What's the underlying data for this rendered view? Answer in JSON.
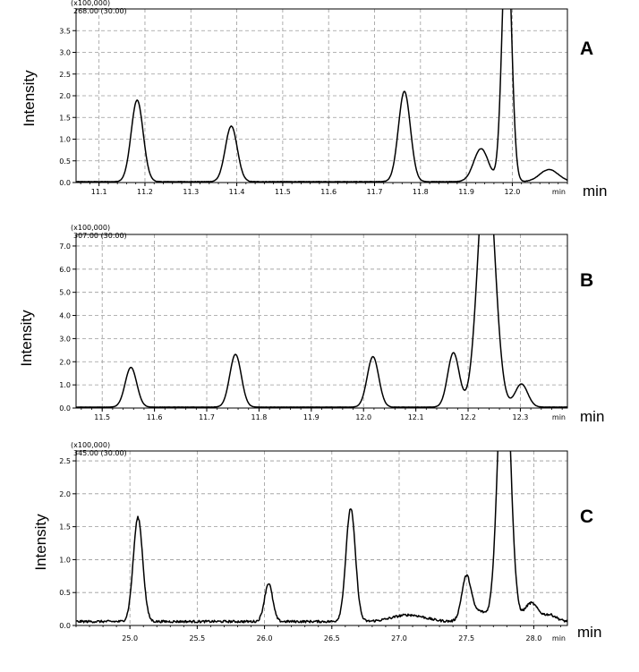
{
  "chart_data": [
    {
      "type": "line",
      "panel_label": "A",
      "multiplier_label": "(x100,000)",
      "ion_label": "268.00 (30.00)",
      "ylabel": "Intensity",
      "xlabel": "min",
      "xunit_label": "min",
      "xlim": [
        11.05,
        12.12
      ],
      "ylim": [
        0,
        4.0
      ],
      "xticks": [
        11.1,
        11.2,
        11.3,
        11.4,
        11.5,
        11.6,
        11.7,
        11.8,
        11.9,
        12.0
      ],
      "xtick_labels": [
        "11.1",
        "11.2",
        "11.3",
        "11.4",
        "11.5",
        "11.6",
        "11.7",
        "11.8",
        "11.9",
        "12.0"
      ],
      "yticks": [
        0,
        0.5,
        1.0,
        1.5,
        2.0,
        2.5,
        3.0,
        3.5
      ],
      "ytick_labels": [
        "0.0",
        "0.5",
        "1.0",
        "1.5",
        "2.0",
        "2.5",
        "3.0",
        "3.5"
      ],
      "baseline": 0.02,
      "peaks": [
        {
          "rt": 11.183,
          "height": 1.88,
          "width": 0.013
        },
        {
          "rt": 11.388,
          "height": 1.28,
          "width": 0.013
        },
        {
          "rt": 11.765,
          "height": 2.08,
          "width": 0.013
        },
        {
          "rt": 11.932,
          "height": 0.76,
          "width": 0.016
        },
        {
          "rt": 11.988,
          "height": 6.0,
          "width": 0.01
        },
        {
          "rt": 12.08,
          "height": 0.28,
          "width": 0.02
        }
      ],
      "points": [
        [
          11.05,
          0.02
        ],
        [
          11.15,
          0.03
        ],
        [
          11.183,
          1.88
        ],
        [
          11.21,
          0.05
        ],
        [
          11.35,
          0.03
        ],
        [
          11.388,
          1.28
        ],
        [
          11.43,
          0.05
        ],
        [
          11.7,
          0.03
        ],
        [
          11.765,
          2.08
        ],
        [
          11.8,
          0.06
        ],
        [
          11.9,
          0.2
        ],
        [
          11.932,
          0.8
        ],
        [
          11.95,
          0.6
        ],
        [
          11.988,
          4.0
        ],
        [
          12.03,
          0.2
        ],
        [
          12.08,
          0.3
        ],
        [
          12.12,
          0.02
        ]
      ]
    },
    {
      "type": "line",
      "panel_label": "B",
      "multiplier_label": "(x100,000)",
      "ion_label": "307.00 (30.00)",
      "ylabel": "Intensity",
      "xlabel": "min",
      "xunit_label": "min",
      "xlim": [
        11.45,
        12.39
      ],
      "ylim": [
        0,
        7.5
      ],
      "xticks": [
        11.5,
        11.6,
        11.7,
        11.8,
        11.9,
        12.0,
        12.1,
        12.2,
        12.3
      ],
      "xtick_labels": [
        "11.5",
        "11.6",
        "11.7",
        "11.8",
        "11.9",
        "12.0",
        "12.1",
        "12.2",
        "12.3"
      ],
      "yticks": [
        0,
        1.0,
        2.0,
        3.0,
        4.0,
        5.0,
        6.0,
        7.0
      ],
      "ytick_labels": [
        "0.0",
        "1.0",
        "2.0",
        "3.0",
        "4.0",
        "5.0",
        "6.0",
        "7.0"
      ],
      "baseline": 0.04,
      "peaks": [
        {
          "rt": 11.555,
          "height": 1.72,
          "width": 0.011
        },
        {
          "rt": 11.755,
          "height": 2.28,
          "width": 0.011
        },
        {
          "rt": 12.018,
          "height": 2.18,
          "width": 0.011
        },
        {
          "rt": 12.172,
          "height": 2.35,
          "width": 0.011
        },
        {
          "rt": 12.235,
          "height": 11.0,
          "width": 0.016
        },
        {
          "rt": 12.302,
          "height": 1.0,
          "width": 0.012
        }
      ],
      "points": [
        [
          11.45,
          0.04
        ],
        [
          11.53,
          0.05
        ],
        [
          11.555,
          1.72
        ],
        [
          11.58,
          0.05
        ],
        [
          11.72,
          0.05
        ],
        [
          11.755,
          2.28
        ],
        [
          11.79,
          0.05
        ],
        [
          11.99,
          0.05
        ],
        [
          12.018,
          2.18
        ],
        [
          12.05,
          0.05
        ],
        [
          12.15,
          0.3
        ],
        [
          12.172,
          2.35
        ],
        [
          12.19,
          1.2
        ],
        [
          12.235,
          7.5
        ],
        [
          12.27,
          0.6
        ],
        [
          12.302,
          1.1
        ],
        [
          12.39,
          0.04
        ]
      ]
    },
    {
      "type": "line",
      "panel_label": "C",
      "multiplier_label": "(x100,000)",
      "ion_label": "345.00 (30.00)",
      "ylabel": "Intensity",
      "xlabel": "min",
      "xunit_label": "min",
      "xlim": [
        24.6,
        28.25
      ],
      "ylim": [
        0,
        2.65
      ],
      "xticks": [
        25.0,
        25.5,
        26.0,
        26.5,
        27.0,
        27.5,
        28.0
      ],
      "xtick_labels": [
        "25.0",
        "25.5",
        "26.0",
        "26.5",
        "27.0",
        "27.5",
        "28.0"
      ],
      "yticks": [
        0,
        0.5,
        1.0,
        1.5,
        2.0,
        2.5
      ],
      "ytick_labels": [
        "0.0",
        "0.5",
        "1.0",
        "1.5",
        "2.0",
        "2.5"
      ],
      "baseline": 0.06,
      "peaks": [
        {
          "rt": 25.06,
          "height": 1.58,
          "width": 0.035
        },
        {
          "rt": 26.03,
          "height": 0.58,
          "width": 0.03
        },
        {
          "rt": 26.64,
          "height": 1.72,
          "width": 0.035
        },
        {
          "rt": 27.07,
          "height": 0.1,
          "width": 0.12
        },
        {
          "rt": 27.5,
          "height": 0.68,
          "width": 0.035
        },
        {
          "rt": 27.6,
          "height": 0.15,
          "width": 0.05
        },
        {
          "rt": 27.78,
          "height": 4.5,
          "width": 0.045
        },
        {
          "rt": 27.98,
          "height": 0.28,
          "width": 0.05
        },
        {
          "rt": 28.12,
          "height": 0.1,
          "width": 0.05
        }
      ],
      "points": [
        [
          24.6,
          0.06
        ],
        [
          25.0,
          0.08
        ],
        [
          25.06,
          1.65
        ],
        [
          25.12,
          0.2
        ],
        [
          25.9,
          0.08
        ],
        [
          26.03,
          0.65
        ],
        [
          26.1,
          0.1
        ],
        [
          26.55,
          0.1
        ],
        [
          26.64,
          1.8
        ],
        [
          26.72,
          0.2
        ],
        [
          27.4,
          0.15
        ],
        [
          27.5,
          0.75
        ],
        [
          27.62,
          0.2
        ],
        [
          27.78,
          2.65
        ],
        [
          27.88,
          0.35
        ],
        [
          27.98,
          0.38
        ],
        [
          28.25,
          0.08
        ]
      ]
    }
  ]
}
